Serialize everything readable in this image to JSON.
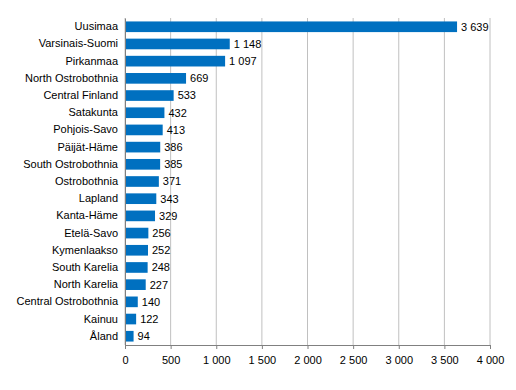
{
  "chart_data": {
    "type": "bar",
    "orientation": "horizontal",
    "categories": [
      "Uusimaa",
      "Varsinais-Suomi",
      "Pirkanmaa",
      "North Ostrobothnia",
      "Central Finland",
      "Satakunta",
      "Pohjois-Savo",
      "Päijät-Häme",
      "South Ostrobothnia",
      "Ostrobothnia",
      "Lapland",
      "Kanta-Häme",
      "Etelä-Savo",
      "Kymenlaakso",
      "South Karelia",
      "North Karelia",
      "Central Ostrobothnia",
      "Kainuu",
      "Åland"
    ],
    "values": [
      3639,
      1148,
      1097,
      669,
      533,
      432,
      413,
      386,
      385,
      371,
      343,
      329,
      256,
      252,
      248,
      227,
      140,
      122,
      94
    ],
    "value_labels": [
      "3 639",
      "1 148",
      "1 097",
      "669",
      "533",
      "432",
      "413",
      "386",
      "385",
      "371",
      "343",
      "329",
      "256",
      "252",
      "248",
      "227",
      "140",
      "122",
      "94"
    ],
    "color": "#0070c0",
    "xlim": [
      0,
      4000
    ],
    "xticks": [
      0,
      500,
      {
        "value": 1000,
        "label": "1 000"
      },
      {
        "value": 1500,
        "label": "1 500"
      },
      {
        "value": 2000,
        "label": "2 000"
      },
      {
        "value": 2500,
        "label": "2 500"
      },
      {
        "value": 3000,
        "label": "3 000"
      },
      {
        "value": 3500,
        "label": "3 500"
      },
      {
        "value": 4000,
        "label": "4 000"
      }
    ],
    "grid": true,
    "data_labels": true
  }
}
